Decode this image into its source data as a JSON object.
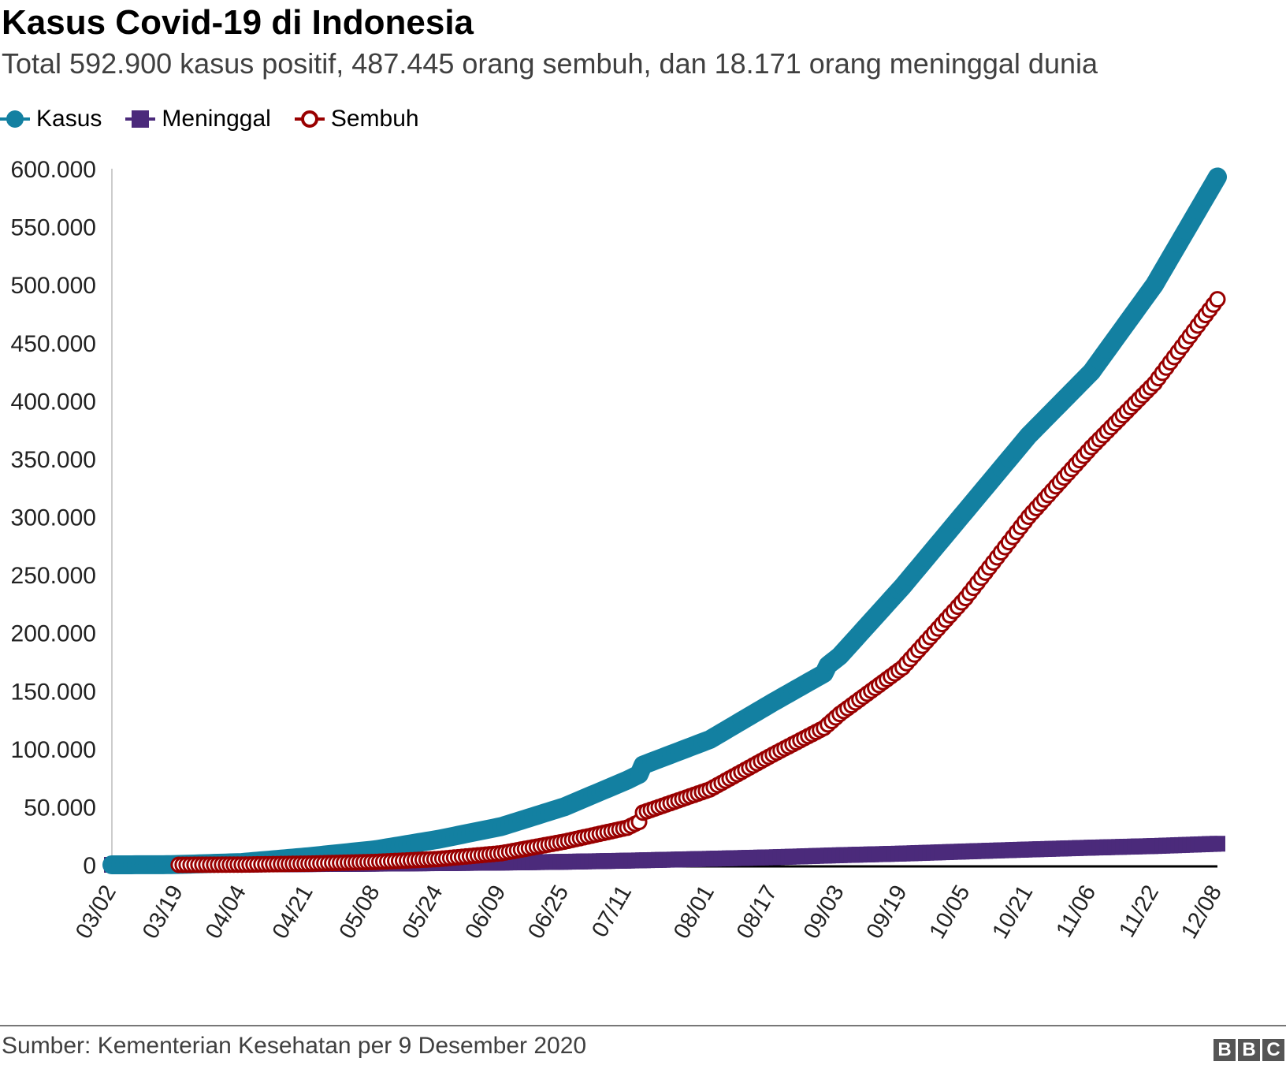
{
  "chart_data": {
    "type": "line",
    "title": "Kasus Covid-19 di Indonesia",
    "subtitle": "Total 592.900 kasus positif, 487.445 orang sembuh, dan 18.171 orang meninggal dunia",
    "xlabel": "",
    "ylabel": "",
    "ylim": [
      0,
      600000
    ],
    "y_ticks": [
      "0",
      "50.000",
      "100.000",
      "150.000",
      "200.000",
      "250.000",
      "300.000",
      "350.000",
      "400.000",
      "450.000",
      "500.000",
      "550.000",
      "600.000"
    ],
    "x_ticks": [
      "03/02",
      "03/19",
      "04/04",
      "04/21",
      "05/08",
      "05/24",
      "06/09",
      "06/25",
      "07/11",
      "08/01",
      "08/17",
      "09/03",
      "09/19",
      "10/05",
      "10/21",
      "11/06",
      "11/22",
      "12/08"
    ],
    "legend": [
      "Kasus",
      "Meninggal",
      "Sembuh"
    ],
    "legend_position": "top-left",
    "grid": false,
    "series": [
      {
        "name": "Kasus",
        "color": "#1380A1",
        "marker": "circle-filled",
        "points": [
          [
            "03/02",
            0
          ],
          [
            "03/15",
            100
          ],
          [
            "03/19",
            300
          ],
          [
            "04/04",
            2000
          ],
          [
            "04/21",
            7000
          ],
          [
            "05/08",
            13000
          ],
          [
            "05/24",
            22000
          ],
          [
            "06/09",
            33000
          ],
          [
            "06/25",
            50000
          ],
          [
            "07/11",
            73000
          ],
          [
            "07/14",
            78000
          ],
          [
            "07/15",
            86000
          ],
          [
            "08/01",
            108000
          ],
          [
            "08/17",
            140000
          ],
          [
            "08/30",
            165000
          ],
          [
            "08/31",
            172000
          ],
          [
            "09/03",
            180000
          ],
          [
            "09/19",
            240000
          ],
          [
            "10/05",
            305000
          ],
          [
            "10/21",
            370000
          ],
          [
            "11/06",
            425000
          ],
          [
            "11/22",
            500000
          ],
          [
            "12/08",
            592900
          ]
        ]
      },
      {
        "name": "Meninggal",
        "color": "#4B2A7B",
        "marker": "square-filled",
        "points": [
          [
            "03/02",
            0
          ],
          [
            "03/19",
            20
          ],
          [
            "04/04",
            200
          ],
          [
            "04/21",
            600
          ],
          [
            "05/08",
            950
          ],
          [
            "05/24",
            1400
          ],
          [
            "06/09",
            1900
          ],
          [
            "06/25",
            2600
          ],
          [
            "07/11",
            3600
          ],
          [
            "08/01",
            5200
          ],
          [
            "08/17",
            6500
          ],
          [
            "09/03",
            8300
          ],
          [
            "09/19",
            9700
          ],
          [
            "10/05",
            11500
          ],
          [
            "10/21",
            13200
          ],
          [
            "11/06",
            14800
          ],
          [
            "11/22",
            16200
          ],
          [
            "12/08",
            18171
          ]
        ]
      },
      {
        "name": "Sembuh",
        "color": "#990000",
        "marker": "circle-open",
        "points": [
          [
            "03/19",
            0
          ],
          [
            "04/04",
            200
          ],
          [
            "04/21",
            1000
          ],
          [
            "05/08",
            2500
          ],
          [
            "05/24",
            5000
          ],
          [
            "06/09",
            10000
          ],
          [
            "06/25",
            20000
          ],
          [
            "07/11",
            32000
          ],
          [
            "07/14",
            37000
          ],
          [
            "07/15",
            45000
          ],
          [
            "08/01",
            65000
          ],
          [
            "08/17",
            95000
          ],
          [
            "08/30",
            118000
          ],
          [
            "09/03",
            130000
          ],
          [
            "09/19",
            170000
          ],
          [
            "10/05",
            230000
          ],
          [
            "10/21",
            300000
          ],
          [
            "11/06",
            360000
          ],
          [
            "11/22",
            415000
          ],
          [
            "12/08",
            487445
          ]
        ]
      }
    ]
  },
  "source": "Sumber: Kementerian Kesehatan per 9 Desember 2020",
  "logo": [
    "B",
    "B",
    "C"
  ]
}
